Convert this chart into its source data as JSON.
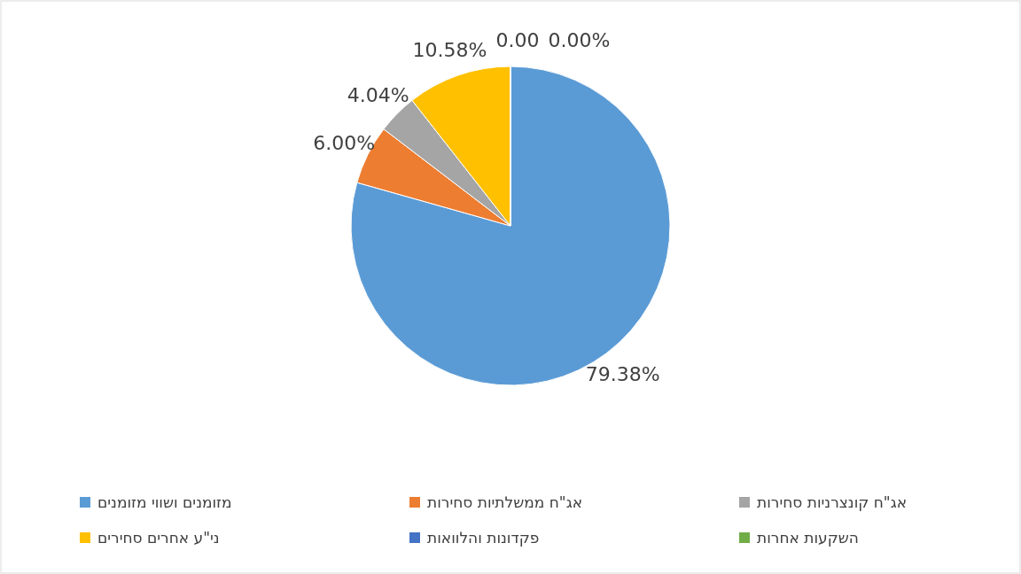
{
  "chart_data": {
    "type": "pie",
    "categories": [
      "מזומנים ושווי מזומנים",
      "אג\"ח ממשלתיות סחירות",
      "אג\"ח קונצרניות סחירות",
      "ני\"ע אחרים סחירים",
      "פקדונות והלוואות",
      "השקעות אחרות"
    ],
    "values": [
      79.38,
      6.0,
      4.04,
      10.58,
      0.0,
      0.0
    ],
    "colors": [
      "#5b9bd5",
      "#ed7d31",
      "#a5a5a5",
      "#ffc000",
      "#4472c4",
      "#70ad47"
    ],
    "value_labels": [
      "79.38%",
      "6.00%",
      "4.04%",
      "10.58%",
      "0.00",
      "0.00%"
    ],
    "legend": "bottom"
  }
}
